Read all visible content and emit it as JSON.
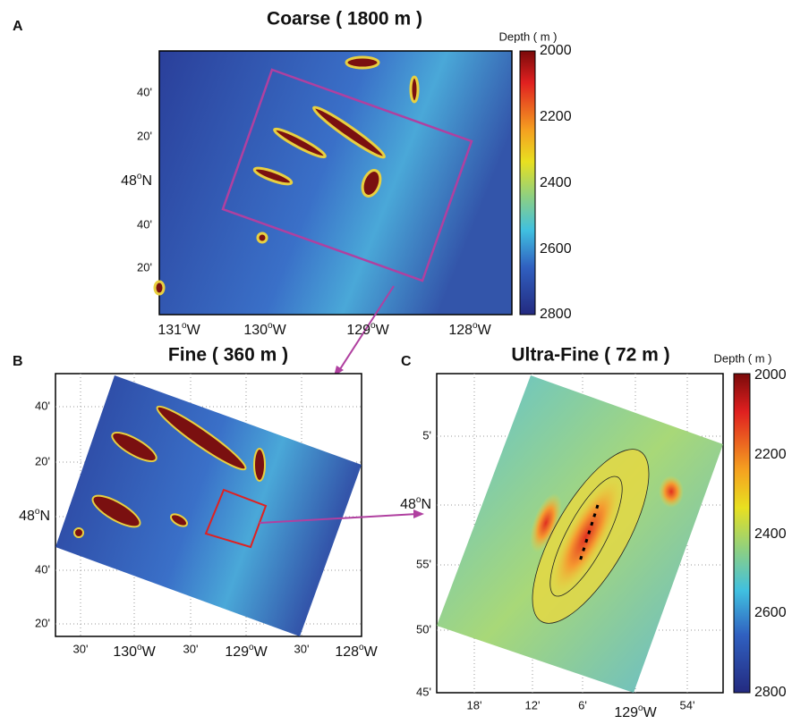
{
  "panels": [
    {
      "label": "A",
      "title": "Coarse ( 1800 m )",
      "lat_ticks": [
        "40'",
        "20'",
        {
          "value": "48",
          "sup": "o",
          "hemisphere": "N"
        },
        "40'",
        "20'"
      ],
      "lon_ticks": [
        {
          "value": "131",
          "sup": "o",
          "hemisphere": "W"
        },
        {
          "value": "130",
          "sup": "o",
          "hemisphere": "W"
        },
        {
          "value": "129",
          "sup": "o",
          "hemisphere": "W"
        },
        {
          "value": "128",
          "sup": "o",
          "hemisphere": "W"
        }
      ],
      "colorbar": {
        "title": "Depth ( m )",
        "ticks": [
          2000,
          2200,
          2400,
          2600,
          2800
        ]
      }
    },
    {
      "label": "B",
      "title": "Fine ( 360 m )",
      "lat_ticks": [
        "40'",
        "20'",
        {
          "value": "48",
          "sup": "o",
          "hemisphere": "N"
        },
        "40'",
        "20'"
      ],
      "lon_ticks": [
        "30'",
        {
          "value": "130",
          "sup": "o",
          "hemisphere": "W"
        },
        "30'",
        {
          "value": "129",
          "sup": "o",
          "hemisphere": "W"
        },
        "30'",
        {
          "value": "128",
          "sup": "o",
          "hemisphere": "W"
        }
      ]
    },
    {
      "label": "C",
      "title": "Ultra-Fine ( 72 m )",
      "lat_ticks": [
        "5'",
        {
          "value": "48",
          "sup": "o",
          "hemisphere": "N"
        },
        "55'",
        "50'",
        "45'"
      ],
      "lon_ticks": [
        "18'",
        "12'",
        "6'",
        {
          "value": "129",
          "sup": "o",
          "hemisphere": "W"
        },
        "54'"
      ],
      "colorbar": {
        "title": "Depth ( m )",
        "ticks": [
          2000,
          2200,
          2400,
          2600,
          2800
        ]
      }
    }
  ]
}
